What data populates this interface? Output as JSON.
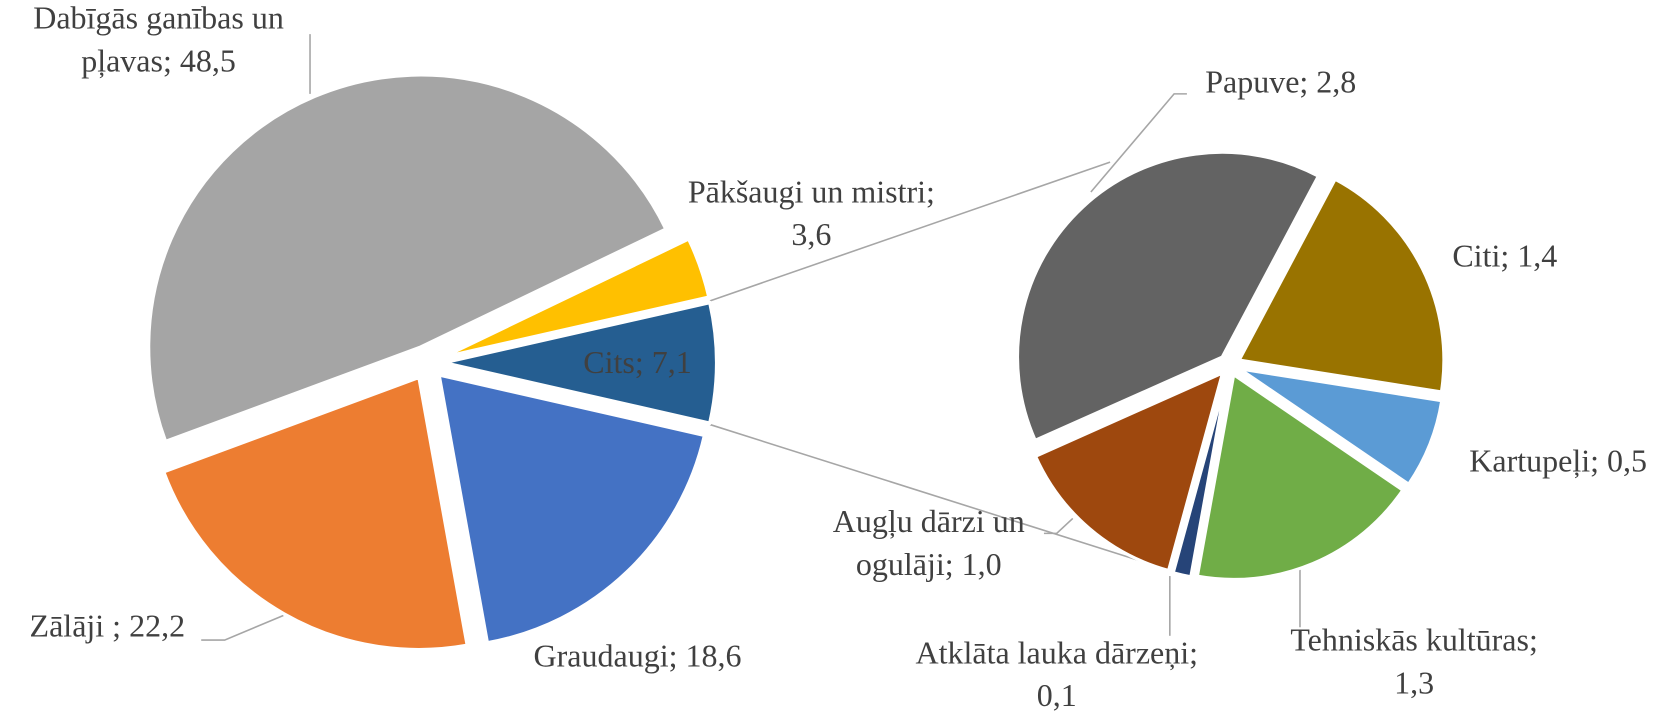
{
  "chart_data": [
    {
      "type": "pie",
      "values": [
        48.5,
        3.6,
        7.1,
        18.6,
        22.2
      ],
      "value_labels": [
        [
          "Dabīgās ganības un",
          "pļavas; 48,5"
        ],
        [
          "Pākšaugi un mistri;",
          "3,6"
        ],
        [
          "Cits; 7,1"
        ],
        [
          "Graudaugi; 18,6"
        ],
        [
          "Zālāji ; 22,2"
        ]
      ],
      "colors": [
        "#a5a5a5",
        "#ffc000",
        "#255e91",
        "#4472c4",
        "#ed7d31"
      ]
    },
    {
      "type": "pie",
      "values": [
        2.8,
        1.4,
        0.5,
        1.3,
        0.1,
        1.0
      ],
      "value_labels": [
        [
          "Papuve; 2,8"
        ],
        [
          "Citi; 1,4"
        ],
        [
          "Kartupeļi; 0,5"
        ],
        [
          "Tehniskās kultūras;",
          "1,3"
        ],
        [
          "Atklāta lauka dārzeņi;",
          "0,1"
        ],
        [
          "Augļu dārzi un",
          "ogulāji; 1,0"
        ]
      ],
      "colors": [
        "#636363",
        "#997300",
        "#5b9bd5",
        "#70ad47",
        "#264478",
        "#9e480e"
      ]
    }
  ]
}
